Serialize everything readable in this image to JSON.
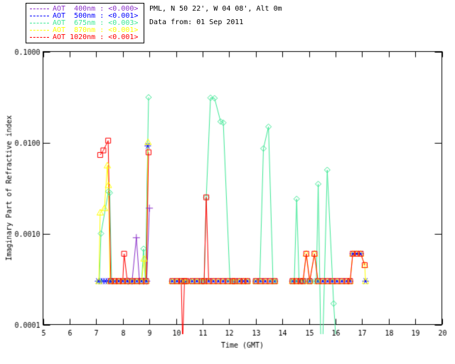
{
  "header": {
    "site_line": "PML, N 50 22', W 04 08', Alt 0m",
    "date_line": "Data from: 01 Sep 2011"
  },
  "legend": {
    "entries": [
      {
        "label": "AOT  400nm : <0.000>",
        "color": "#8a2fc9",
        "marker": "plus"
      },
      {
        "label": "AOT  500nm : <0.001>",
        "color": "#0000ff",
        "marker": "asterisk"
      },
      {
        "label": "AOT  675nm : <0.003>",
        "color": "#3fe896",
        "marker": "diamond"
      },
      {
        "label": "AOT  870nm : <0.001>",
        "color": "#ffff00",
        "marker": "triangle"
      },
      {
        "label": "AOT 1020nm : <0.001>",
        "color": "#ff0000",
        "marker": "square"
      }
    ]
  },
  "chart_data": {
    "type": "line",
    "title": "",
    "xlabel": "Time (GMT)",
    "ylabel": "Imaginary Part of Refractive index",
    "xlim": [
      5,
      20
    ],
    "ylim": [
      0.0001,
      0.1
    ],
    "y_scale": "log",
    "x_ticks": [
      5,
      6,
      7,
      8,
      9,
      10,
      11,
      12,
      13,
      14,
      15,
      16,
      17,
      18,
      19,
      20
    ],
    "y_ticks": [
      {
        "value": 0.1,
        "label": "0.1000"
      },
      {
        "value": 0.01,
        "label": "0.0100"
      },
      {
        "value": 0.001,
        "label": "0.0010"
      },
      {
        "value": 0.0001,
        "label": "0.0001"
      }
    ],
    "axis_color": "#000000",
    "series": [
      {
        "name": "AOT 400nm",
        "color": "#8a2fc9",
        "marker": "plus",
        "segments": [
          [
            [
              8.2,
              0.0003
            ],
            [
              8.35,
              0.0003
            ],
            [
              8.51,
              0.0009
            ],
            [
              8.63,
              0.0003
            ],
            [
              8.78,
              0.0003
            ],
            [
              8.9,
              0.0003
            ],
            [
              9.0,
              0.0019
            ]
          ]
        ]
      },
      {
        "name": "AOT 500nm",
        "color": "#0000ff",
        "marker": "asterisk",
        "segments": [
          [
            [
              7.07,
              0.0003
            ],
            [
              7.16,
              0.0003
            ],
            [
              7.25,
              0.0003
            ],
            [
              7.34,
              0.0003
            ],
            [
              7.43,
              0.0003
            ],
            [
              7.51,
              0.0003
            ]
          ],
          [
            [
              7.55,
              0.0003
            ],
            [
              7.7,
              0.0003
            ],
            [
              7.85,
              0.0003
            ],
            [
              8.0,
              0.0003
            ]
          ],
          [
            [
              8.17,
              0.0003
            ],
            [
              8.35,
              0.0003
            ],
            [
              8.53,
              0.0003
            ],
            [
              8.71,
              0.0003
            ],
            [
              8.88,
              0.0003
            ],
            [
              8.94,
              0.0092
            ]
          ],
          [
            [
              9.86,
              0.0003
            ],
            [
              10.04,
              0.0003
            ],
            [
              10.2,
              0.0003
            ],
            [
              10.32,
              0.0003
            ],
            [
              10.39,
              0.0003
            ]
          ],
          [
            [
              10.61,
              0.0003
            ],
            [
              10.79,
              0.0003
            ],
            [
              10.97,
              0.0003
            ],
            [
              11.06,
              0.0003
            ],
            [
              11.23,
              0.0003
            ],
            [
              11.41,
              0.0003
            ],
            [
              11.59,
              0.0003
            ],
            [
              11.77,
              0.0003
            ],
            [
              11.95,
              0.0003
            ],
            [
              12.13,
              0.0003
            ],
            [
              12.21,
              0.0003
            ]
          ],
          [
            [
              12.39,
              0.0003
            ],
            [
              12.54,
              0.0003
            ],
            [
              12.69,
              0.0003
            ]
          ],
          [
            [
              13.0,
              0.0003
            ],
            [
              13.18,
              0.0003
            ],
            [
              13.36,
              0.0003
            ],
            [
              13.54,
              0.0003
            ],
            [
              13.72,
              0.0003
            ]
          ],
          [
            [
              14.38,
              0.0003
            ],
            [
              14.53,
              0.0003
            ],
            [
              14.68,
              0.0003
            ],
            [
              14.78,
              0.0003
            ]
          ],
          [
            [
              15.03,
              0.0003
            ]
          ],
          [
            [
              15.34,
              0.0003
            ],
            [
              15.52,
              0.0003
            ],
            [
              15.7,
              0.0003
            ],
            [
              15.88,
              0.0003
            ],
            [
              16.06,
              0.0003
            ],
            [
              16.24,
              0.0003
            ],
            [
              16.42,
              0.0003
            ],
            [
              16.55,
              0.0003
            ]
          ],
          [
            [
              16.65,
              0.0006
            ],
            [
              16.8,
              0.0006
            ],
            [
              16.95,
              0.0006
            ]
          ],
          [
            [
              17.13,
              0.0003
            ]
          ]
        ]
      },
      {
        "name": "AOT 675nm",
        "color": "#3fe896",
        "marker": "diamond",
        "segments": [
          [
            [
              7.12,
              0.0003
            ],
            [
              7.18,
              0.001
            ],
            [
              7.46,
              0.0029
            ],
            [
              7.51,
              0.0028
            ],
            [
              7.58,
              0.0003
            ],
            [
              7.7,
              0.0003
            ],
            [
              7.85,
              0.0003
            ],
            [
              8.0,
              0.0003
            ]
          ],
          [
            [
              8.17,
              0.0003
            ],
            [
              8.35,
              0.0003
            ],
            [
              8.53,
              0.0003
            ],
            [
              8.71,
              0.0003
            ],
            [
              8.78,
              0.00068
            ],
            [
              8.85,
              0.0003
            ],
            [
              8.97,
              0.0314
            ]
          ],
          [
            [
              9.86,
              0.0003
            ],
            [
              10.04,
              0.0003
            ],
            [
              10.2,
              0.0003
            ],
            [
              10.32,
              0.0003
            ],
            [
              10.39,
              0.0003
            ]
          ],
          [
            [
              10.61,
              0.0003
            ],
            [
              10.79,
              0.0003
            ],
            [
              10.97,
              0.0003
            ],
            [
              11.06,
              0.0003
            ],
            [
              11.14,
              0.0025
            ],
            [
              11.3,
              0.031
            ],
            [
              11.45,
              0.0307
            ],
            [
              11.68,
              0.017
            ],
            [
              11.78,
              0.0165
            ],
            [
              12.03,
              0.0003
            ],
            [
              12.13,
              0.0003
            ],
            [
              12.21,
              0.0003
            ]
          ],
          [
            [
              12.39,
              0.0003
            ],
            [
              12.54,
              0.0003
            ],
            [
              12.69,
              0.0003
            ]
          ],
          [
            [
              13.0,
              0.0003
            ],
            [
              13.15,
              0.0003
            ],
            [
              13.29,
              0.0086
            ],
            [
              13.48,
              0.0149
            ],
            [
              13.65,
              0.0003
            ],
            [
              13.72,
              0.0003
            ]
          ],
          [
            [
              14.38,
              0.0003
            ],
            [
              14.45,
              0.0003
            ],
            [
              14.54,
              0.0024
            ],
            [
              14.63,
              0.0003
            ],
            [
              14.78,
              0.0003
            ],
            [
              14.9,
              0.0003
            ],
            [
              15.03,
              0.0003
            ],
            [
              15.21,
              0.0003
            ],
            [
              15.28,
              0.0003
            ],
            [
              15.35,
              0.0035
            ],
            [
              15.45,
              6e-05
            ],
            [
              15.52,
              6e-05
            ],
            [
              15.69,
              0.005
            ],
            [
              15.93,
              0.00017
            ],
            [
              16.03,
              6e-05
            ]
          ]
        ]
      },
      {
        "name": "AOT 870nm",
        "color": "#ffff00",
        "marker": "triangle",
        "segments": [
          [
            [
              7.1,
              0.0003
            ],
            [
              7.15,
              0.0017
            ],
            [
              7.31,
              0.0019
            ],
            [
              7.42,
              0.0056
            ],
            [
              7.46,
              0.0034
            ],
            [
              7.52,
              0.0003
            ],
            [
              7.7,
              0.0003
            ],
            [
              7.85,
              0.0003
            ],
            [
              8.0,
              0.0003
            ]
          ],
          [
            [
              8.17,
              0.0003
            ],
            [
              8.35,
              0.0003
            ],
            [
              8.53,
              0.0003
            ],
            [
              8.71,
              0.0003
            ],
            [
              8.8,
              0.00053
            ],
            [
              8.88,
              0.0003
            ],
            [
              8.95,
              0.0101
            ]
          ],
          [
            [
              9.86,
              0.0003
            ],
            [
              10.04,
              0.0003
            ],
            [
              10.2,
              0.0003
            ],
            [
              10.32,
              0.0003
            ],
            [
              10.39,
              0.0003
            ]
          ],
          [
            [
              10.61,
              0.0003
            ],
            [
              10.79,
              0.0003
            ],
            [
              10.97,
              0.0003
            ],
            [
              11.06,
              0.0003
            ],
            [
              11.23,
              0.0003
            ],
            [
              11.41,
              0.0003
            ],
            [
              11.59,
              0.0003
            ],
            [
              11.77,
              0.0003
            ],
            [
              11.95,
              0.0003
            ],
            [
              12.13,
              0.0003
            ],
            [
              12.21,
              0.0003
            ]
          ],
          [
            [
              12.39,
              0.0003
            ],
            [
              12.54,
              0.0003
            ],
            [
              12.69,
              0.0003
            ]
          ],
          [
            [
              13.0,
              0.0003
            ],
            [
              13.18,
              0.0003
            ],
            [
              13.36,
              0.0003
            ],
            [
              13.54,
              0.0003
            ],
            [
              13.72,
              0.0003
            ]
          ],
          [
            [
              14.38,
              0.0003
            ],
            [
              14.53,
              0.0003
            ],
            [
              14.68,
              0.0003
            ],
            [
              14.78,
              0.0003
            ],
            [
              14.9,
              0.0006
            ],
            [
              15.03,
              0.0003
            ],
            [
              15.21,
              0.0006
            ],
            [
              15.34,
              0.0003
            ],
            [
              15.52,
              0.0003
            ],
            [
              15.7,
              0.0003
            ],
            [
              15.88,
              0.0003
            ],
            [
              16.06,
              0.0003
            ],
            [
              16.24,
              0.0003
            ],
            [
              16.42,
              0.0003
            ],
            [
              16.55,
              0.0003
            ],
            [
              16.65,
              0.0006
            ],
            [
              16.8,
              0.0006
            ],
            [
              16.95,
              0.0006
            ],
            [
              17.1,
              0.00045
            ],
            [
              17.13,
              0.0003
            ]
          ]
        ]
      },
      {
        "name": "AOT 1020nm",
        "color": "#ff0000",
        "marker": "square",
        "segments": [
          [
            [
              7.15,
              0.0073
            ],
            [
              7.27,
              0.0082
            ],
            [
              7.45,
              0.0105
            ],
            [
              7.55,
              0.0003
            ],
            [
              7.7,
              0.0003
            ],
            [
              7.85,
              0.0003
            ],
            [
              8.0,
              0.0003
            ],
            [
              8.05,
              0.0006
            ],
            [
              8.17,
              0.0003
            ],
            [
              8.35,
              0.0003
            ],
            [
              8.53,
              0.0003
            ],
            [
              8.71,
              0.0003
            ],
            [
              8.88,
              0.0003
            ],
            [
              8.97,
              0.0078
            ]
          ],
          [
            [
              9.86,
              0.0003
            ],
            [
              10.04,
              0.0003
            ],
            [
              10.2,
              0.0003
            ],
            [
              10.25,
              6e-05
            ],
            [
              10.32,
              0.0003
            ],
            [
              10.39,
              0.0003
            ]
          ],
          [
            [
              10.61,
              0.0003
            ],
            [
              10.79,
              0.0003
            ],
            [
              10.97,
              0.0003
            ],
            [
              11.06,
              0.0003
            ],
            [
              11.14,
              0.0025
            ],
            [
              11.23,
              0.0003
            ],
            [
              11.41,
              0.0003
            ],
            [
              11.59,
              0.0003
            ],
            [
              11.77,
              0.0003
            ],
            [
              11.95,
              0.0003
            ],
            [
              12.13,
              0.0003
            ],
            [
              12.21,
              0.0003
            ]
          ],
          [
            [
              12.39,
              0.0003
            ],
            [
              12.54,
              0.0003
            ],
            [
              12.69,
              0.0003
            ]
          ],
          [
            [
              13.0,
              0.0003
            ],
            [
              13.18,
              0.0003
            ],
            [
              13.36,
              0.0003
            ],
            [
              13.54,
              0.0003
            ],
            [
              13.72,
              0.0003
            ]
          ],
          [
            [
              14.38,
              0.0003
            ],
            [
              14.53,
              0.0003
            ],
            [
              14.68,
              0.0003
            ],
            [
              14.78,
              0.0003
            ],
            [
              14.9,
              0.0006
            ],
            [
              15.03,
              0.0003
            ],
            [
              15.21,
              0.0006
            ],
            [
              15.34,
              0.0003
            ],
            [
              15.52,
              0.0003
            ],
            [
              15.7,
              0.0003
            ],
            [
              15.88,
              0.0003
            ],
            [
              16.06,
              0.0003
            ],
            [
              16.24,
              0.0003
            ],
            [
              16.42,
              0.0003
            ],
            [
              16.55,
              0.0003
            ],
            [
              16.65,
              0.0006
            ],
            [
              16.8,
              0.0006
            ],
            [
              16.95,
              0.0006
            ],
            [
              17.1,
              0.00045
            ]
          ]
        ]
      }
    ]
  }
}
